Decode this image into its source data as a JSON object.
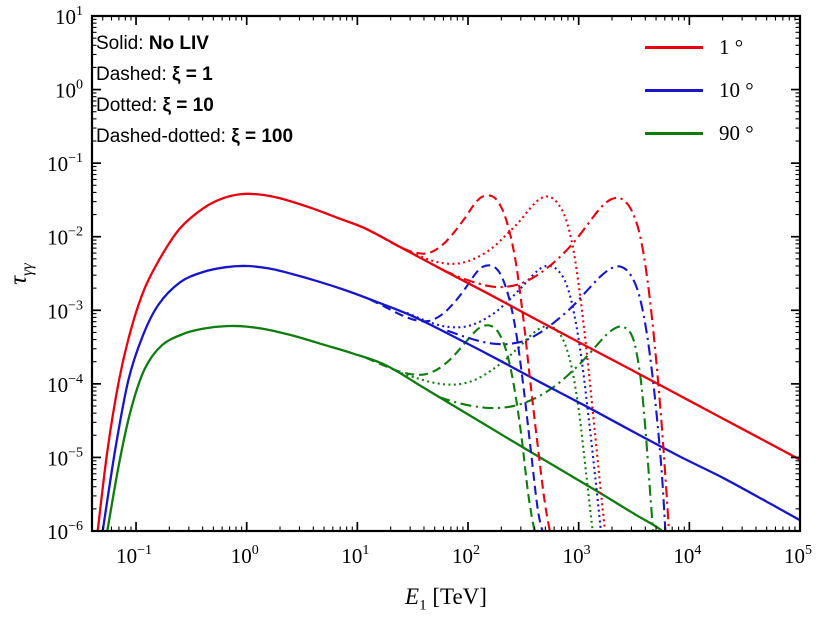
{
  "chart_data": {
    "type": "line",
    "xscale": "log",
    "yscale": "log",
    "xlim": [
      0.04,
      100000
    ],
    "ylim": [
      1e-06,
      10
    ],
    "grid": false,
    "x_tick_exponents": [
      -1,
      0,
      1,
      2,
      3,
      4,
      5
    ],
    "y_tick_exponents": [
      1,
      0,
      -1,
      -2,
      -3,
      -4,
      -5,
      -6
    ],
    "xlabel": {
      "base": "E",
      "sub": "1",
      "rest": " [TeV]"
    },
    "ylabel": {
      "base": "τ",
      "sub": "γγ"
    },
    "annotations": [
      {
        "prefix": "Solid: ",
        "math": "No LIV"
      },
      {
        "prefix": "Dashed: ",
        "math": "ξ = 1"
      },
      {
        "prefix": "Dotted: ",
        "math": "ξ = 10"
      },
      {
        "prefix": "Dashed-dotted: ",
        "math": "ξ = 100"
      }
    ],
    "legend": {
      "position": "top-right",
      "items": [
        {
          "label": "1 °",
          "color": "#e8000f"
        },
        {
          "label": "10 °",
          "color": "#1717c9"
        },
        {
          "label": "90 °",
          "color": "#0f7c10"
        }
      ]
    },
    "style_map": {
      "solid": "No LIV",
      "dashed": "ξ = 1",
      "dotted": "ξ = 10",
      "dashdot": "ξ = 100"
    },
    "series": [
      {
        "id": "green-dashdot",
        "angle": "90 °",
        "liv": "ξ = 100",
        "style": "dashdot",
        "color": "#0f7c10",
        "points": [
          [
            55,
            6.6e-05
          ],
          [
            78,
            5.6e-05
          ],
          [
            110,
            5e-05
          ],
          [
            155,
            4.7e-05
          ],
          [
            220,
            4.8e-05
          ],
          [
            310,
            5.4e-05
          ],
          [
            440,
            6.8e-05
          ],
          [
            620,
            9.5e-05
          ],
          [
            860,
            0.000145
          ],
          [
            1170,
            0.00023
          ],
          [
            1520,
            0.00036
          ],
          [
            1910,
            0.00051
          ],
          [
            2350,
            0.0006
          ],
          [
            2870,
            0.00052
          ],
          [
            3250,
            0.00032
          ],
          [
            3650,
            0.00011
          ],
          [
            4050,
            2e-05
          ],
          [
            4450,
            3e-06
          ],
          [
            4750,
            8e-07
          ]
        ]
      },
      {
        "id": "green-dotted",
        "angle": "90 °",
        "liv": "ξ = 10",
        "style": "dotted",
        "color": "#0f7c10",
        "points": [
          [
            25,
            0.00014
          ],
          [
            34,
            0.00012
          ],
          [
            47,
            0.000105
          ],
          [
            64,
            9.8e-05
          ],
          [
            87,
            0.0001
          ],
          [
            118,
            0.000115
          ],
          [
            160,
            0.00015
          ],
          [
            215,
            0.00021
          ],
          [
            285,
            0.00031
          ],
          [
            360,
            0.00044
          ],
          [
            440,
            0.00056
          ],
          [
            530,
            0.00061
          ],
          [
            630,
            0.00054
          ],
          [
            745,
            0.00036
          ],
          [
            870,
            0.00016
          ],
          [
            1010,
            4e-05
          ],
          [
            1170,
            6e-06
          ],
          [
            1330,
            1.1e-06
          ],
          [
            1400,
            8e-07
          ]
        ]
      },
      {
        "id": "green-dashed",
        "angle": "90 °",
        "liv": "ξ = 1",
        "style": "dashed",
        "color": "#0f7c10",
        "points": [
          [
            12,
            0.000225
          ],
          [
            17,
            0.00018
          ],
          [
            23,
            0.00015
          ],
          [
            31,
            0.000135
          ],
          [
            41,
            0.000135
          ],
          [
            54,
            0.00016
          ],
          [
            70,
            0.00022
          ],
          [
            88,
            0.00032
          ],
          [
            108,
            0.00046
          ],
          [
            130,
            0.00059
          ],
          [
            158,
            0.00062
          ],
          [
            188,
            0.0005
          ],
          [
            222,
            0.00028
          ],
          [
            260,
            9.5e-05
          ],
          [
            303,
            2e-05
          ],
          [
            350,
            3.2e-06
          ],
          [
            400,
            1e-06
          ],
          [
            430,
            8e-07
          ]
        ]
      },
      {
        "id": "green-solid",
        "angle": "90 °",
        "liv": "No LIV",
        "style": "solid",
        "color": "#0f7c10",
        "points": [
          [
            0.055,
            1e-06
          ],
          [
            0.07,
            8e-06
          ],
          [
            0.09,
            4.5e-05
          ],
          [
            0.12,
            0.00016
          ],
          [
            0.17,
            0.00033
          ],
          [
            0.26,
            0.00047
          ],
          [
            0.4,
            0.00056
          ],
          [
            0.65,
            0.00061
          ],
          [
            1.0,
            0.0006
          ],
          [
            1.6,
            0.00054
          ],
          [
            2.8,
            0.00044
          ],
          [
            5,
            0.00034
          ],
          [
            9,
            0.00026
          ],
          [
            18,
            0.00018
          ],
          [
            40,
            8.8e-05
          ],
          [
            100,
            3.85e-05
          ],
          [
            250,
            1.68e-05
          ],
          [
            600,
            7.7e-06
          ],
          [
            1500,
            3.4e-06
          ],
          [
            3000,
            1.8e-06
          ],
          [
            5000,
            1.15e-06
          ],
          [
            5900,
            9.5e-07
          ]
        ]
      },
      {
        "id": "blue-dashdot",
        "angle": "10 °",
        "liv": "ξ = 100",
        "style": "dashdot",
        "color": "#1717c9",
        "points": [
          [
            65,
            0.00053
          ],
          [
            92,
            0.00044
          ],
          [
            128,
            0.00038
          ],
          [
            175,
            0.00035
          ],
          [
            240,
            0.00035
          ],
          [
            330,
            0.00039
          ],
          [
            460,
            0.00051
          ],
          [
            640,
            0.00074
          ],
          [
            890,
            0.00115
          ],
          [
            1210,
            0.0019
          ],
          [
            1560,
            0.00285
          ],
          [
            1960,
            0.0037
          ],
          [
            2410,
            0.0039
          ],
          [
            2960,
            0.003
          ],
          [
            3560,
            0.0015
          ],
          [
            4210,
            0.0004
          ],
          [
            4910,
            6e-05
          ],
          [
            5600,
            7e-06
          ],
          [
            6100,
            9e-07
          ]
        ]
      },
      {
        "id": "blue-dotted",
        "angle": "10 °",
        "liv": "ξ = 10",
        "style": "dotted",
        "color": "#1717c9",
        "points": [
          [
            28,
            0.00092
          ],
          [
            38,
            0.00076
          ],
          [
            52,
            0.00064
          ],
          [
            70,
            0.00059
          ],
          [
            95,
            0.0006
          ],
          [
            128,
            0.0007
          ],
          [
            175,
            0.00093
          ],
          [
            232,
            0.00135
          ],
          [
            305,
            0.00205
          ],
          [
            385,
            0.003
          ],
          [
            465,
            0.0038
          ],
          [
            555,
            0.004
          ],
          [
            660,
            0.0034
          ],
          [
            780,
            0.0022
          ],
          [
            910,
            0.0009
          ],
          [
            1060,
            0.00022
          ],
          [
            1230,
            3.5e-05
          ],
          [
            1420,
            5e-06
          ],
          [
            1600,
            9e-07
          ]
        ]
      },
      {
        "id": "blue-dashed",
        "angle": "10 °",
        "liv": "ξ = 1",
        "style": "dashed",
        "color": "#1717c9",
        "points": [
          [
            13,
            0.0014
          ],
          [
            18,
            0.0011
          ],
          [
            25,
            0.00086
          ],
          [
            34,
            0.00073
          ],
          [
            45,
            0.00072
          ],
          [
            59,
            0.00089
          ],
          [
            76,
            0.0013
          ],
          [
            96,
            0.00205
          ],
          [
            116,
            0.0031
          ],
          [
            136,
            0.0039
          ],
          [
            166,
            0.004
          ],
          [
            196,
            0.0031
          ],
          [
            231,
            0.0016
          ],
          [
            271,
            0.00052
          ],
          [
            316,
            9.5e-05
          ],
          [
            366,
            1.4e-05
          ],
          [
            426,
            2e-06
          ],
          [
            480,
            9e-07
          ]
        ]
      },
      {
        "id": "blue-solid",
        "angle": "10 °",
        "liv": "No LIV",
        "style": "solid",
        "color": "#1717c9",
        "points": [
          [
            0.05,
            1e-06
          ],
          [
            0.065,
            1.3e-05
          ],
          [
            0.085,
            0.00011
          ],
          [
            0.115,
            0.00045
          ],
          [
            0.16,
            0.0012
          ],
          [
            0.25,
            0.0024
          ],
          [
            0.4,
            0.0033
          ],
          [
            0.65,
            0.00385
          ],
          [
            1.0,
            0.004
          ],
          [
            1.6,
            0.0037
          ],
          [
            2.6,
            0.0031
          ],
          [
            4.5,
            0.00245
          ],
          [
            8,
            0.00185
          ],
          [
            15,
            0.0013
          ],
          [
            30,
            0.00086
          ],
          [
            70,
            0.00046
          ],
          [
            180,
            0.00022
          ],
          [
            450,
            0.000105
          ],
          [
            1100,
            5.2e-05
          ],
          [
            3000,
            2.3e-05
          ],
          [
            8000,
            1.05e-05
          ],
          [
            20000,
            5.3e-06
          ],
          [
            50000,
            2.5e-06
          ],
          [
            100000,
            1.4e-06
          ]
        ]
      },
      {
        "id": "red-dashdot",
        "angle": "1 °",
        "liv": "ξ = 100",
        "style": "dashdot",
        "color": "#e8000f",
        "points": [
          [
            60,
            0.0035
          ],
          [
            85,
            0.0028
          ],
          [
            120,
            0.00235
          ],
          [
            165,
            0.0021
          ],
          [
            230,
            0.0021
          ],
          [
            320,
            0.0024
          ],
          [
            450,
            0.0032
          ],
          [
            630,
            0.0048
          ],
          [
            880,
            0.008
          ],
          [
            1200,
            0.0145
          ],
          [
            1550,
            0.024
          ],
          [
            1950,
            0.032
          ],
          [
            2400,
            0.033
          ],
          [
            2950,
            0.024
          ],
          [
            3550,
            0.011
          ],
          [
            4200,
            0.0025
          ],
          [
            4900,
            0.0003
          ],
          [
            5600,
            3e-05
          ],
          [
            6200,
            3.5e-06
          ],
          [
            6600,
            8e-07
          ]
        ]
      },
      {
        "id": "red-dotted",
        "angle": "1 °",
        "liv": "ξ = 10",
        "style": "dotted",
        "color": "#e8000f",
        "points": [
          [
            25,
            0.0071
          ],
          [
            35,
            0.0056
          ],
          [
            48,
            0.0047
          ],
          [
            65,
            0.0043
          ],
          [
            88,
            0.0044
          ],
          [
            120,
            0.0052
          ],
          [
            165,
            0.007
          ],
          [
            220,
            0.0105
          ],
          [
            290,
            0.016
          ],
          [
            370,
            0.025
          ],
          [
            450,
            0.033
          ],
          [
            540,
            0.035
          ],
          [
            640,
            0.029
          ],
          [
            760,
            0.018
          ],
          [
            890,
            0.007
          ],
          [
            1030,
            0.0016
          ],
          [
            1200,
            0.00022
          ],
          [
            1390,
            2.5e-05
          ],
          [
            1600,
            3e-06
          ],
          [
            1760,
            8e-07
          ]
        ]
      },
      {
        "id": "red-dashed",
        "angle": "1 °",
        "liv": "ξ = 1",
        "style": "dashed",
        "color": "#e8000f",
        "points": [
          [
            12,
            0.0128
          ],
          [
            17,
            0.0097
          ],
          [
            24,
            0.0073
          ],
          [
            33,
            0.0061
          ],
          [
            44,
            0.006
          ],
          [
            58,
            0.0076
          ],
          [
            75,
            0.0115
          ],
          [
            95,
            0.0185
          ],
          [
            115,
            0.028
          ],
          [
            135,
            0.035
          ],
          [
            165,
            0.0355
          ],
          [
            195,
            0.027
          ],
          [
            230,
            0.014
          ],
          [
            270,
            0.0045
          ],
          [
            315,
            0.0008
          ],
          [
            365,
            0.00011
          ],
          [
            425,
            1.5e-05
          ],
          [
            495,
            2.4e-06
          ],
          [
            565,
            8e-07
          ]
        ]
      },
      {
        "id": "red-solid",
        "angle": "1 °",
        "liv": "No LIV",
        "style": "solid",
        "color": "#e8000f",
        "points": [
          [
            0.045,
            1e-06
          ],
          [
            0.055,
            1.2e-05
          ],
          [
            0.07,
            0.00011
          ],
          [
            0.09,
            0.00055
          ],
          [
            0.12,
            0.002
          ],
          [
            0.17,
            0.0055
          ],
          [
            0.25,
            0.013
          ],
          [
            0.4,
            0.024
          ],
          [
            0.6,
            0.033
          ],
          [
            0.9,
            0.038
          ],
          [
            1.4,
            0.037
          ],
          [
            2.2,
            0.032
          ],
          [
            4,
            0.024
          ],
          [
            7,
            0.0175
          ],
          [
            12,
            0.0128
          ],
          [
            25,
            0.0071
          ],
          [
            60,
            0.0035
          ],
          [
            150,
            0.0017
          ],
          [
            400,
            0.00077
          ],
          [
            1000,
            0.00037
          ],
          [
            3000,
            0.000155
          ],
          [
            10000,
            5.9e-05
          ],
          [
            30000,
            2.45e-05
          ],
          [
            100000,
            9.3e-06
          ]
        ]
      }
    ]
  }
}
